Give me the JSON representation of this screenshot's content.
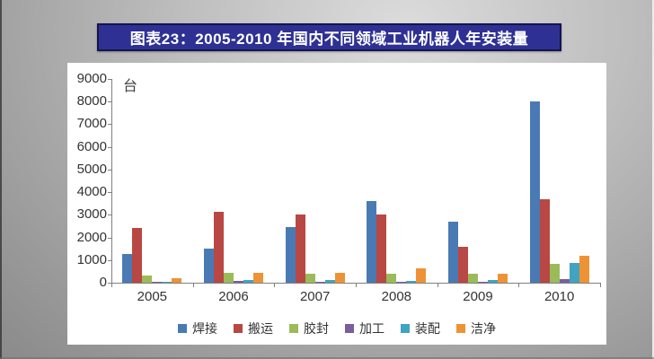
{
  "title": {
    "text": "图表23：2005-2010 年国内不同领域工业机器人年安装量"
  },
  "colors": {
    "banner_bg": "#2e3193",
    "banner_border": "#14144e",
    "banner_text": "#ffffff",
    "panel_bg": "#ffffff",
    "axis": "#808080"
  },
  "chart_data": {
    "type": "bar",
    "title": "图表23：2005-2010 年国内不同领域工业机器人年安装量",
    "unit_label": "台",
    "xlabel": "",
    "ylabel": "",
    "categories": [
      "2005",
      "2006",
      "2007",
      "2008",
      "2009",
      "2010"
    ],
    "series": [
      {
        "name": "焊接",
        "color": "#4a7ab4",
        "values": [
          1250,
          1500,
          2450,
          3600,
          2700,
          8000
        ]
      },
      {
        "name": "搬运",
        "color": "#b94743",
        "values": [
          2400,
          3150,
          3000,
          3000,
          1600,
          3700
        ]
      },
      {
        "name": "胶封",
        "color": "#9bbb59",
        "values": [
          300,
          450,
          400,
          400,
          400,
          850
        ]
      },
      {
        "name": "加工",
        "color": "#7a5da1",
        "values": [
          50,
          60,
          50,
          50,
          50,
          160
        ]
      },
      {
        "name": "装配",
        "color": "#3fa3c2",
        "values": [
          50,
          100,
          100,
          80,
          130,
          880
        ]
      },
      {
        "name": "洁净",
        "color": "#ed9336",
        "values": [
          200,
          450,
          450,
          650,
          400,
          1200
        ]
      }
    ],
    "ylim": [
      0,
      9000
    ],
    "ytick_step": 1000,
    "yticks": [
      0,
      1000,
      2000,
      3000,
      4000,
      5000,
      6000,
      7000,
      8000,
      9000
    ],
    "grid": false,
    "legend_position": "bottom"
  }
}
